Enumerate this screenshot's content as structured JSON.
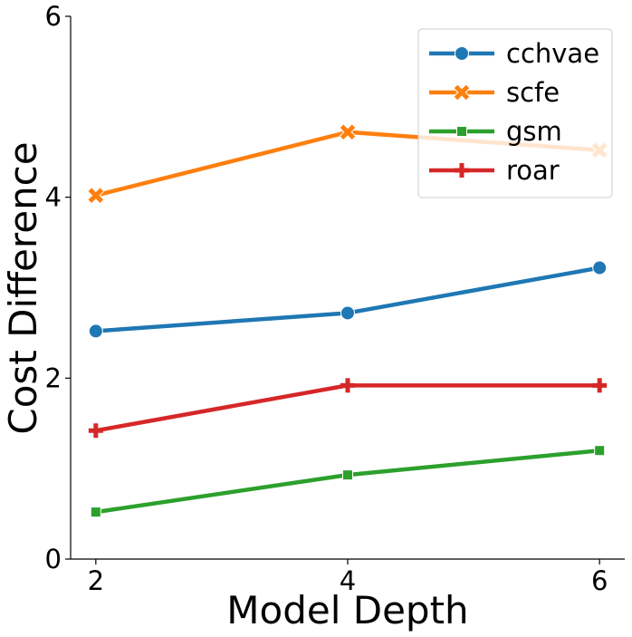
{
  "chart_data": {
    "type": "line",
    "title": "",
    "xlabel": "Model Depth",
    "ylabel": "Cost Difference",
    "x": [
      2,
      4,
      6
    ],
    "xticks": [
      2,
      4,
      6
    ],
    "yticks": [
      0,
      2,
      4,
      6
    ],
    "xlim": [
      1.8,
      6.2
    ],
    "ylim": [
      0,
      6
    ],
    "grid": false,
    "legend_position": "top-right",
    "series": [
      {
        "name": "cchvae",
        "values": [
          2.52,
          2.72,
          3.22
        ],
        "color": "#1f77b4",
        "marker": "circle"
      },
      {
        "name": "scfe",
        "values": [
          4.02,
          4.72,
          4.52
        ],
        "color": "#ff7f0e",
        "marker": "x"
      },
      {
        "name": "gsm",
        "values": [
          0.52,
          0.93,
          1.2
        ],
        "color": "#2ca02c",
        "marker": "square"
      },
      {
        "name": "roar",
        "values": [
          1.42,
          1.92,
          1.92
        ],
        "color": "#d62728",
        "marker": "plus"
      }
    ]
  }
}
